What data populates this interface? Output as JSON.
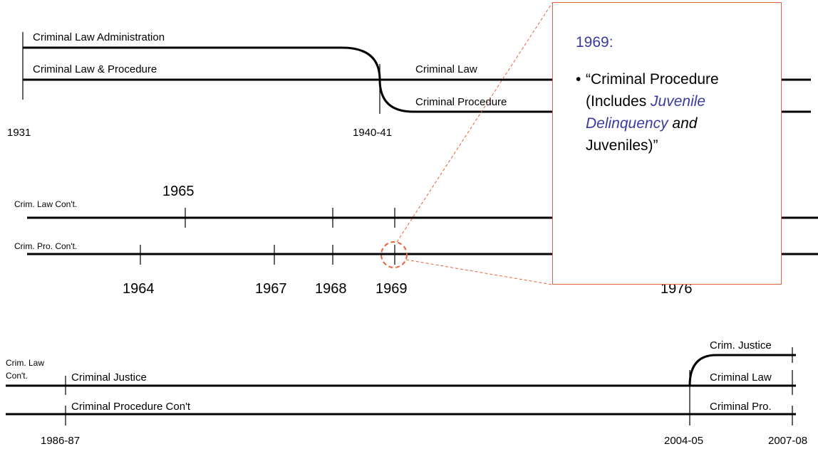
{
  "row1": {
    "labels": [
      "Criminal Law Administration",
      "Criminal Law & Procedure",
      "Criminal Law",
      "Criminal Procedure"
    ],
    "dates": [
      "1931",
      "1940-41"
    ]
  },
  "row2": {
    "labels": [
      "Crim. Law Con't.",
      "Crim. Pro. Con't."
    ],
    "dates_top": [
      "1965"
    ],
    "dates_bottom": [
      "1964",
      "1967",
      "1968",
      "1969",
      "1976"
    ]
  },
  "row3": {
    "labels": [
      "Crim. Law",
      "Con't.",
      "Criminal Justice",
      "Criminal Procedure Con't",
      "Crim. Justice",
      "Criminal Law",
      "Criminal Pro."
    ],
    "dates": [
      "1986-87",
      "2004-05",
      "2007-08"
    ]
  },
  "callout": {
    "title": "1969:",
    "bullet": [
      "“Criminal Procedure (Includes ",
      "Juvenile Delinquency",
      " and",
      " Juveniles)”"
    ]
  }
}
